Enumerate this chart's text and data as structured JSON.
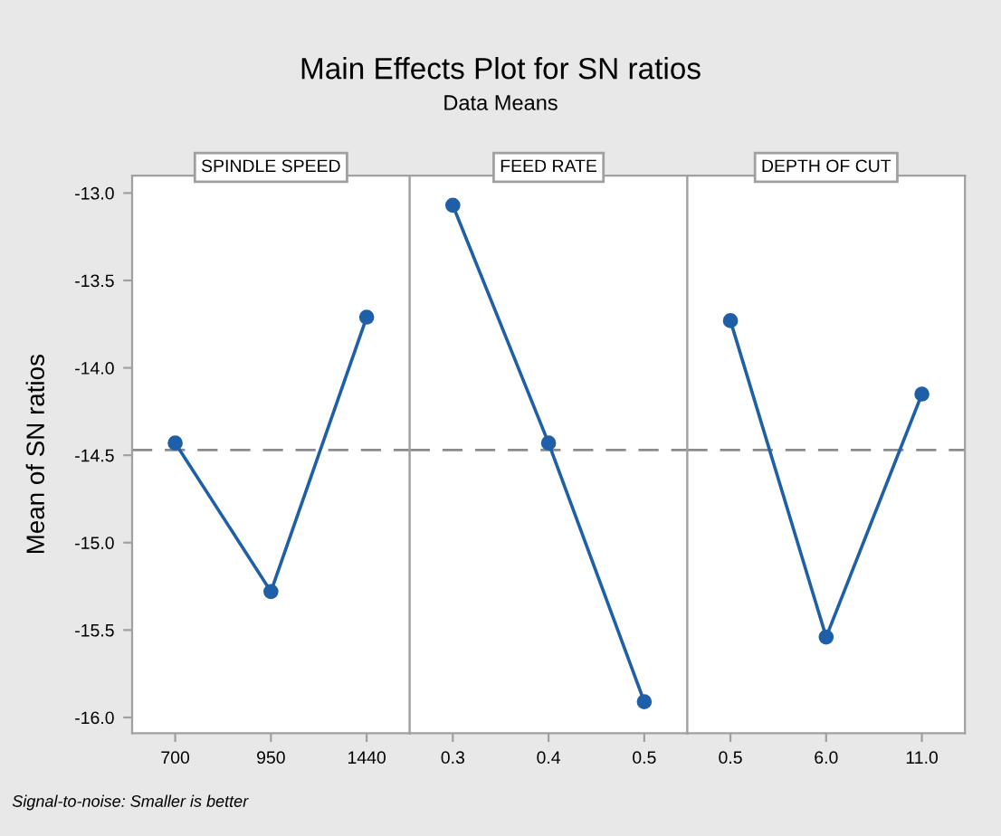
{
  "chart_data": [
    {
      "type": "line",
      "title": "SPINDLE SPEED",
      "ylabel": "Mean of SN ratios",
      "annotations": [
        "Main Effects Plot for SN ratios",
        "Data Means",
        "Signal-to-noise: Smaller is better"
      ],
      "categories": [
        "700",
        "950",
        "1440"
      ],
      "series": [
        {
          "color": "#1f5fa8",
          "values": [
            -14.43,
            -15.28,
            -13.71
          ]
        }
      ],
      "ylim": [
        -16.09,
        -12.9
      ],
      "yticks": [
        {
          "value": -13,
          "label": "-13.0"
        },
        {
          "value": -13.5,
          "label": "-13.5"
        },
        {
          "value": -14,
          "label": "-14.0"
        },
        {
          "value": -14.5,
          "label": "-14.5"
        },
        {
          "value": -15,
          "label": "-15.0"
        },
        {
          "value": -15.5,
          "label": "-15.5"
        },
        {
          "value": -16,
          "label": "-16.0"
        }
      ],
      "ref_lines": [
        {
          "axis": "y",
          "value": -14.47,
          "color": "#8c8c8c",
          "line_style": "dashed"
        }
      ],
      "marker": "circle",
      "line_style": "solid",
      "grid": false,
      "legend": false
    },
    {
      "type": "line",
      "title": "FEED RATE",
      "categories": [
        "0.3",
        "0.4",
        "0.5"
      ],
      "series": [
        {
          "color": "#1f5fa8",
          "values": [
            -13.07,
            -14.43,
            -15.91
          ]
        }
      ],
      "ylim": [
        -16.09,
        -12.9
      ],
      "tick_labels": "x",
      "ref_lines": [
        {
          "axis": "y",
          "value": -14.47,
          "color": "#8c8c8c",
          "line_style": "dashed"
        }
      ],
      "marker": "circle",
      "line_style": "solid",
      "grid": false,
      "legend": false
    },
    {
      "type": "line",
      "title": "DEPTH OF CUT",
      "categories": [
        "0.5",
        "6.0",
        "11.0"
      ],
      "series": [
        {
          "color": "#1f5fa8",
          "values": [
            -13.73,
            -15.54,
            -14.15
          ]
        }
      ],
      "ylim": [
        -16.09,
        -12.9
      ],
      "tick_labels": "x",
      "ref_lines": [
        {
          "axis": "y",
          "value": -14.47,
          "color": "#8c8c8c",
          "line_style": "dashed"
        }
      ],
      "marker": "circle",
      "line_style": "solid",
      "grid": false,
      "legend": false
    }
  ]
}
